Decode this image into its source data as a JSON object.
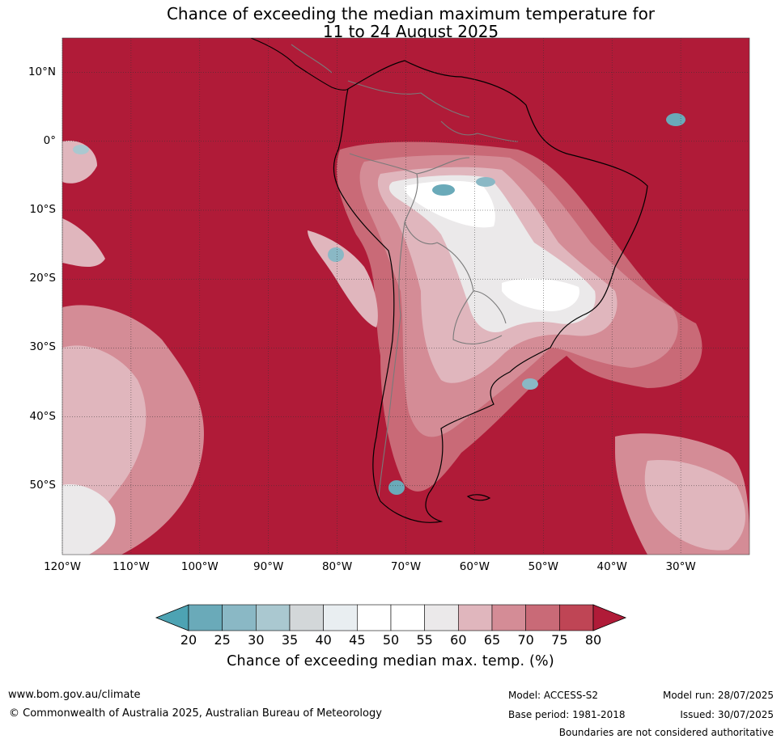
{
  "title": {
    "line1": "Chance of exceeding the median maximum temperature for",
    "line2": "11 to 24 August 2025"
  },
  "map": {
    "lat_range": [
      -60,
      15
    ],
    "lon_range": [
      -120,
      -20
    ],
    "lat_ticks": [
      "10°N",
      "0°",
      "10°S",
      "20°S",
      "30°S",
      "40°S",
      "50°S"
    ],
    "lon_ticks": [
      "120°W",
      "110°W",
      "100°W",
      "90°W",
      "80°W",
      "70°W",
      "60°W",
      "50°W",
      "40°W",
      "30°W"
    ],
    "background_color": "#b01b38",
    "country_border_color": "#7a7a7a",
    "coastline_color": "#000000"
  },
  "colorbar": {
    "bins": [
      20,
      25,
      30,
      35,
      40,
      45,
      50,
      55,
      60,
      65,
      70,
      75,
      80
    ],
    "under_color": "#4da3b3",
    "over_color": "#b01b38",
    "colors": [
      "#6aaab9",
      "#8ab8c5",
      "#aac8d0",
      "#d3d7d9",
      "#e9eef1",
      "#ffffff",
      "#ffffff",
      "#ebe9ea",
      "#e0b6bd",
      "#d48c96",
      "#c96a77",
      "#bf4555"
    ],
    "caption": "Chance of exceeding median max. temp. (%)"
  },
  "footer": {
    "website": "www.bom.gov.au/climate",
    "copyright": "© Commonwealth of Australia 2025, Australian Bureau of Meteorology",
    "model": "Model: ACCESS-S2",
    "base_period": "Base period: 1981-2018",
    "model_run": "Model run: 28/07/2025",
    "issued": "Issued: 30/07/2025",
    "disclaimer": "Boundaries are not considered authoritative"
  }
}
